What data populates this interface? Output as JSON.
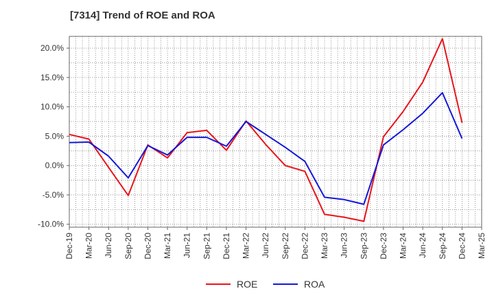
{
  "chart_data": {
    "type": "line",
    "title": "[7314]  Trend of ROE and ROA",
    "xlabel": "",
    "ylabel": "",
    "categories": [
      "Dec-19",
      "Mar-20",
      "Jun-20",
      "Sep-20",
      "Dec-20",
      "Mar-21",
      "Jun-21",
      "Sep-21",
      "Dec-21",
      "Mar-22",
      "Jun-22",
      "Sep-22",
      "Dec-22",
      "Mar-23",
      "Jun-23",
      "Sep-23",
      "Dec-23",
      "Mar-24",
      "Jun-24",
      "Sep-24",
      "Dec-24",
      "Mar-25"
    ],
    "ylim": [
      -10.5,
      22.0
    ],
    "yticks": [
      20.0,
      15.0,
      10.0,
      5.0,
      0.0,
      -5.0,
      -10.0
    ],
    "ytick_labels": [
      "20.0%",
      "15.0%",
      "10.0%",
      "5.0%",
      "0.0%",
      "-5.0%",
      "-10.0%"
    ],
    "grid": true,
    "legend_position": "bottom",
    "series": [
      {
        "name": "ROE",
        "color": "#e8141b",
        "values": [
          5.3,
          4.5,
          -0.3,
          -5.1,
          3.5,
          1.3,
          5.6,
          6.0,
          2.6,
          7.6,
          3.6,
          0.0,
          -1.0,
          -8.3,
          -8.8,
          -9.5,
          4.9,
          9.2,
          14.2,
          21.6,
          7.3,
          null
        ]
      },
      {
        "name": "ROA",
        "color": "#1417d8",
        "values": [
          3.9,
          4.0,
          1.6,
          -2.1,
          3.4,
          1.8,
          4.8,
          4.8,
          3.3,
          7.5,
          5.3,
          3.1,
          0.7,
          -5.4,
          -5.8,
          -6.6,
          3.5,
          6.1,
          8.9,
          12.4,
          4.6,
          null
        ]
      }
    ]
  }
}
